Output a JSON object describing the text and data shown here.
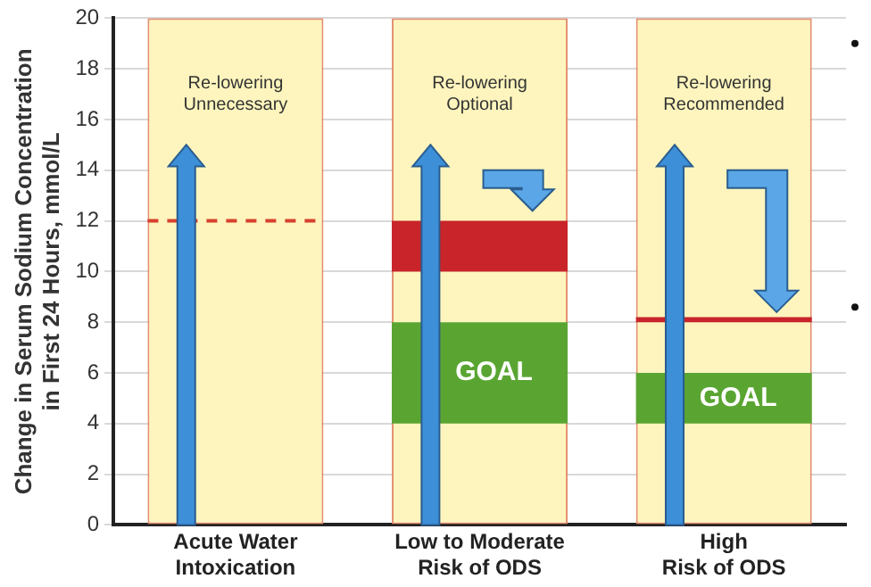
{
  "chart_data": {
    "type": "bar",
    "ylabel": "Change in Serum Sodium Concentration\nin First 24 Hours, mmol/L",
    "categories": [
      "Acute Water\nIntoxication",
      "Low to Moderate\nRisk of ODS",
      "High\nRisk of ODS"
    ],
    "ylim": [
      0,
      20
    ],
    "yticks": [
      0,
      2,
      4,
      6,
      8,
      10,
      12,
      14,
      16,
      18,
      20
    ],
    "grid": "y",
    "legend": false,
    "series": [
      {
        "color": "#fdf5bd",
        "values": [
          20,
          20,
          20
        ],
        "base": [
          0,
          0,
          0
        ]
      },
      {
        "color": "#5aa532",
        "values": [
          null,
          4,
          2
        ],
        "base": [
          null,
          4,
          4
        ],
        "value_labels": [
          null,
          "GOAL",
          "GOAL"
        ]
      },
      {
        "color": "#c8242a",
        "values": [
          null,
          2,
          0.2
        ],
        "base": [
          null,
          10,
          8
        ]
      }
    ],
    "ref_lines": [
      {
        "axis": "y",
        "value": 12,
        "color": "#d8402e",
        "line_style": "dashed"
      }
    ],
    "annotations": [
      "Re-lowering\nUnnecessary",
      "Re-lowering\nOptional",
      "Re-lowering\nRecommended"
    ]
  }
}
